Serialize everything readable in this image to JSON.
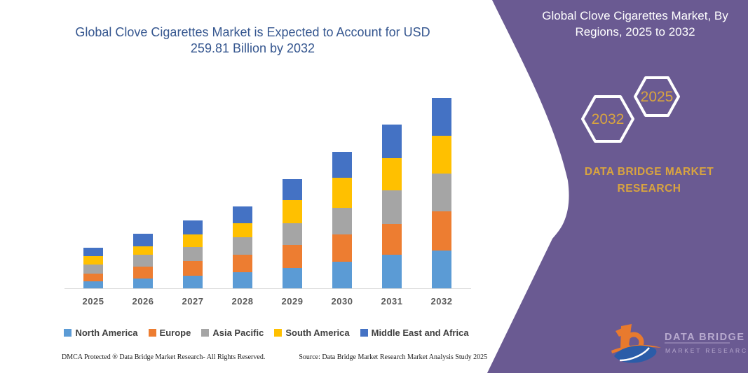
{
  "left_title": "Global Clove Cigarettes Market is Expected to Account for USD 259.81 Billion by 2032",
  "panel": {
    "title": "Global Clove Cigarettes Market, By Regions, 2025 to 2032",
    "hexagon_back_label": "2032",
    "hexagon_front_label": "2025",
    "brand_name": "DATA BRIDGE MARKET RESEARCH",
    "panel_color": "#6A5A92",
    "accent_gold": "#D9A43F"
  },
  "chart_data": {
    "type": "bar",
    "stacked": true,
    "value_unit": "USD Billion (estimated, no value axis shown)",
    "categories": [
      "2025",
      "2026",
      "2027",
      "2028",
      "2029",
      "2030",
      "2031",
      "2032"
    ],
    "series": [
      {
        "name": "North America",
        "color": "#5B9BD5",
        "values": [
          9.6,
          13.4,
          17.2,
          22.0,
          27.7,
          36.3,
          45.8,
          51.6
        ]
      },
      {
        "name": "Europe",
        "color": "#ED7D31",
        "values": [
          10.5,
          16.2,
          20.1,
          23.9,
          31.5,
          37.2,
          42.0,
          53.5
        ]
      },
      {
        "name": "Asia Pacific",
        "color": "#A5A5A5",
        "values": [
          12.4,
          16.2,
          19.1,
          23.9,
          29.6,
          36.3,
          45.8,
          51.6
        ]
      },
      {
        "name": "South America",
        "color": "#FFC000",
        "values": [
          11.5,
          11.5,
          17.2,
          19.1,
          31.5,
          41.1,
          43.9,
          51.6
        ]
      },
      {
        "name": "Middle East and Africa",
        "color": "#4472C4",
        "values": [
          11.5,
          17.2,
          19.1,
          22.9,
          28.7,
          35.3,
          45.8,
          51.6
        ]
      }
    ],
    "totals": [
      55.5,
      74.5,
      92.7,
      111.8,
      149.0,
      186.2,
      223.3,
      259.81
    ],
    "highlight_total_2032": 259.81,
    "legend_position": "bottom",
    "axes": {
      "x_visible": true,
      "y_visible": false,
      "gridlines": false
    }
  },
  "footer": {
    "dmca": "DMCA Protected ® Data Bridge Market Research-  All Rights Reserved.",
    "source": "Source: Data Bridge Market Research  Market Analysis Study 2025"
  },
  "logo": {
    "brand_top": "DATA BRIDGE",
    "brand_bottom": "MARKET RESEARCH"
  }
}
